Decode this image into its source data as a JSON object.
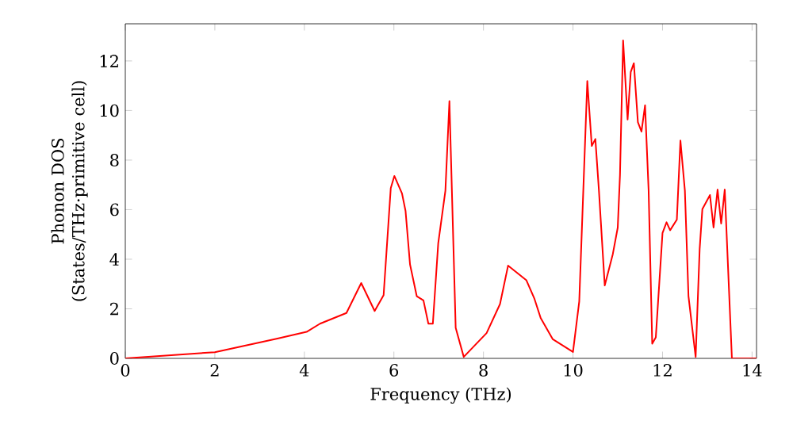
{
  "chart_data": {
    "type": "line",
    "xlabel": "Frequency (THz)",
    "ylabel": "Phonon DOS (States/THz·primitive cell)",
    "x": [
      0,
      2,
      3.4,
      4.05,
      4.35,
      4.94,
      5.27,
      5.57,
      5.77,
      5.93,
      6.01,
      6.18,
      6.26,
      6.36,
      6.51,
      6.66,
      6.77,
      6.87,
      6.99,
      7.15,
      7.24,
      7.38,
      7.56,
      8.07,
      8.37,
      8.55,
      8.96,
      9.14,
      9.28,
      9.55,
      10.0,
      10.14,
      10.32,
      10.42,
      10.5,
      10.58,
      10.71,
      10.89,
      11.0,
      11.05,
      11.12,
      11.22,
      11.29,
      11.36,
      11.45,
      11.53,
      11.61,
      11.69,
      11.77,
      11.85,
      12.0,
      12.09,
      12.17,
      12.32,
      12.4,
      12.5,
      12.58,
      12.74,
      12.83,
      12.89,
      13.06,
      13.14,
      13.23,
      13.31,
      13.39,
      13.55,
      14.1
    ],
    "series": [
      {
        "color": "#ff0000",
        "values": [
          0,
          0.25,
          0.8,
          1.07,
          1.4,
          1.83,
          3.04,
          1.91,
          2.55,
          6.87,
          7.36,
          6.66,
          5.95,
          3.79,
          2.51,
          2.34,
          1.4,
          1.4,
          4.64,
          6.76,
          10.38,
          1.23,
          0.06,
          1.02,
          2.19,
          3.74,
          3.15,
          2.4,
          1.62,
          0.77,
          0.26,
          2.3,
          11.19,
          8.57,
          8.85,
          6.76,
          2.94,
          4.21,
          5.28,
          7.4,
          12.83,
          9.64,
          11.55,
          11.91,
          9.53,
          9.15,
          10.21,
          6.76,
          0.59,
          0.85,
          5.06,
          5.49,
          5.17,
          5.6,
          8.79,
          6.76,
          2.51,
          0.06,
          4.42,
          6.02,
          6.59,
          5.28,
          6.81,
          5.44,
          6.81,
          0,
          0
        ]
      }
    ],
    "xlim": [
      0,
      14.1
    ],
    "ylim": [
      0,
      13.5
    ],
    "xticks": [
      0,
      2,
      4,
      6,
      8,
      10,
      12,
      14
    ],
    "yticks": [
      0,
      2,
      4,
      6,
      8,
      10,
      12
    ],
    "grid": false,
    "marker": "none",
    "line_style": "solid"
  }
}
